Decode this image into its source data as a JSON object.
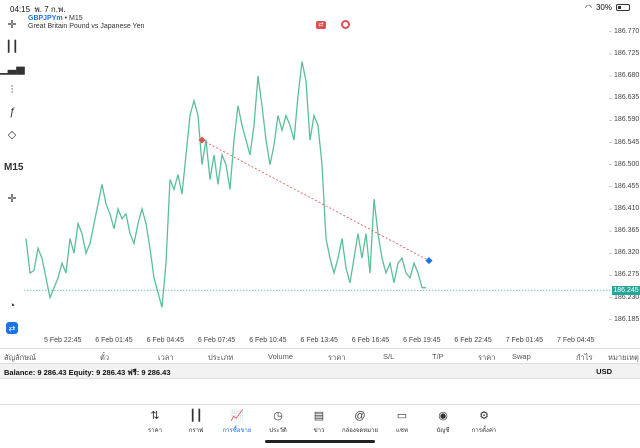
{
  "status_bar": {
    "time": "04:15",
    "date": "พ. 7 ก.พ.",
    "battery": "30%",
    "battery_level": 0.3
  },
  "chart": {
    "symbol": "GBPJPYm",
    "timeframe_sep": "•",
    "timeframe": "M15",
    "description": "Great Britain Pound vs Japanese Yen",
    "timeframe_label": "M15",
    "current_price": "186.245",
    "colors": {
      "line": "#5bbf9a",
      "trendline": "#e05050",
      "current_price": "#26a69a",
      "accent": "#1a73e8"
    }
  },
  "chart_data": {
    "type": "line",
    "ylim": [
      186.16,
      186.79
    ],
    "price_ticks": [
      "186.770",
      "186.725",
      "186.680",
      "186.635",
      "186.590",
      "186.545",
      "186.500",
      "186.455",
      "186.410",
      "186.365",
      "186.320",
      "186.275",
      "186.230",
      "186.185"
    ],
    "x_ticks": [
      "5 Feb 22:45",
      "6 Feb 01:45",
      "6 Feb 04:45",
      "6 Feb 07:45",
      "6 Feb 10:45",
      "6 Feb 13:45",
      "6 Feb 16:45",
      "6 Feb 19:45",
      "6 Feb 22:45",
      "7 Feb 01:45",
      "7 Feb 04:45"
    ],
    "series": [
      {
        "values": [
          186.35,
          186.28,
          186.285,
          186.33,
          186.31,
          186.27,
          186.23,
          186.25,
          186.27,
          186.3,
          186.28,
          186.35,
          186.32,
          186.38,
          186.36,
          186.32,
          186.34,
          186.38,
          186.42,
          186.46,
          186.42,
          186.4,
          186.37,
          186.41,
          186.39,
          186.4,
          186.36,
          186.34,
          186.38,
          186.41,
          186.38,
          186.33,
          186.27,
          186.24,
          186.21,
          186.3,
          186.47,
          186.45,
          186.48,
          186.44,
          186.52,
          186.6,
          186.63,
          186.6,
          186.5,
          186.55,
          186.47,
          186.52,
          186.46,
          186.52,
          186.5,
          186.45,
          186.55,
          186.62,
          186.58,
          186.55,
          186.52,
          186.58,
          186.68,
          186.62,
          186.55,
          186.5,
          186.54,
          186.6,
          186.57,
          186.6,
          186.58,
          186.55,
          186.64,
          186.71,
          186.67,
          186.55,
          186.6,
          186.58,
          186.5,
          186.35,
          186.31,
          186.28,
          186.31,
          186.35,
          186.29,
          186.26,
          186.31,
          186.36,
          186.31,
          186.36,
          186.28,
          186.43,
          186.36,
          186.31,
          186.28,
          186.3,
          186.26,
          186.3,
          186.31,
          186.28,
          186.27,
          186.3,
          186.28,
          186.25,
          186.25
        ]
      }
    ]
  },
  "table_header": [
    "สัญลักษณ์",
    "ตั๋ว",
    "เวลา",
    "ประเภท",
    "Volume",
    "ราคา",
    "S/L",
    "T/P",
    "ราคา",
    "Swap",
    "กำไร",
    "หมายเหตุ"
  ],
  "balance": {
    "text": "Balance: 9 286.43 Equity: 9 286.43 ฟรี: 9 286.43",
    "currency": "USD"
  },
  "nav": [
    {
      "label": "ราคา",
      "icon": "quotes-icon"
    },
    {
      "label": "กราฟ",
      "icon": "chart-icon"
    },
    {
      "label": "การซื้อขาย",
      "icon": "trade-icon"
    },
    {
      "label": "ประวัติ",
      "icon": "history-icon"
    },
    {
      "label": "ข่าว",
      "icon": "news-icon"
    },
    {
      "label": "กล่องจดหมาย",
      "icon": "mailbox-icon"
    },
    {
      "label": "แชท",
      "icon": "chat-icon"
    },
    {
      "label": "บัญชี",
      "icon": "account-icon"
    },
    {
      "label": "การตั้งค่า",
      "icon": "settings-icon"
    }
  ]
}
